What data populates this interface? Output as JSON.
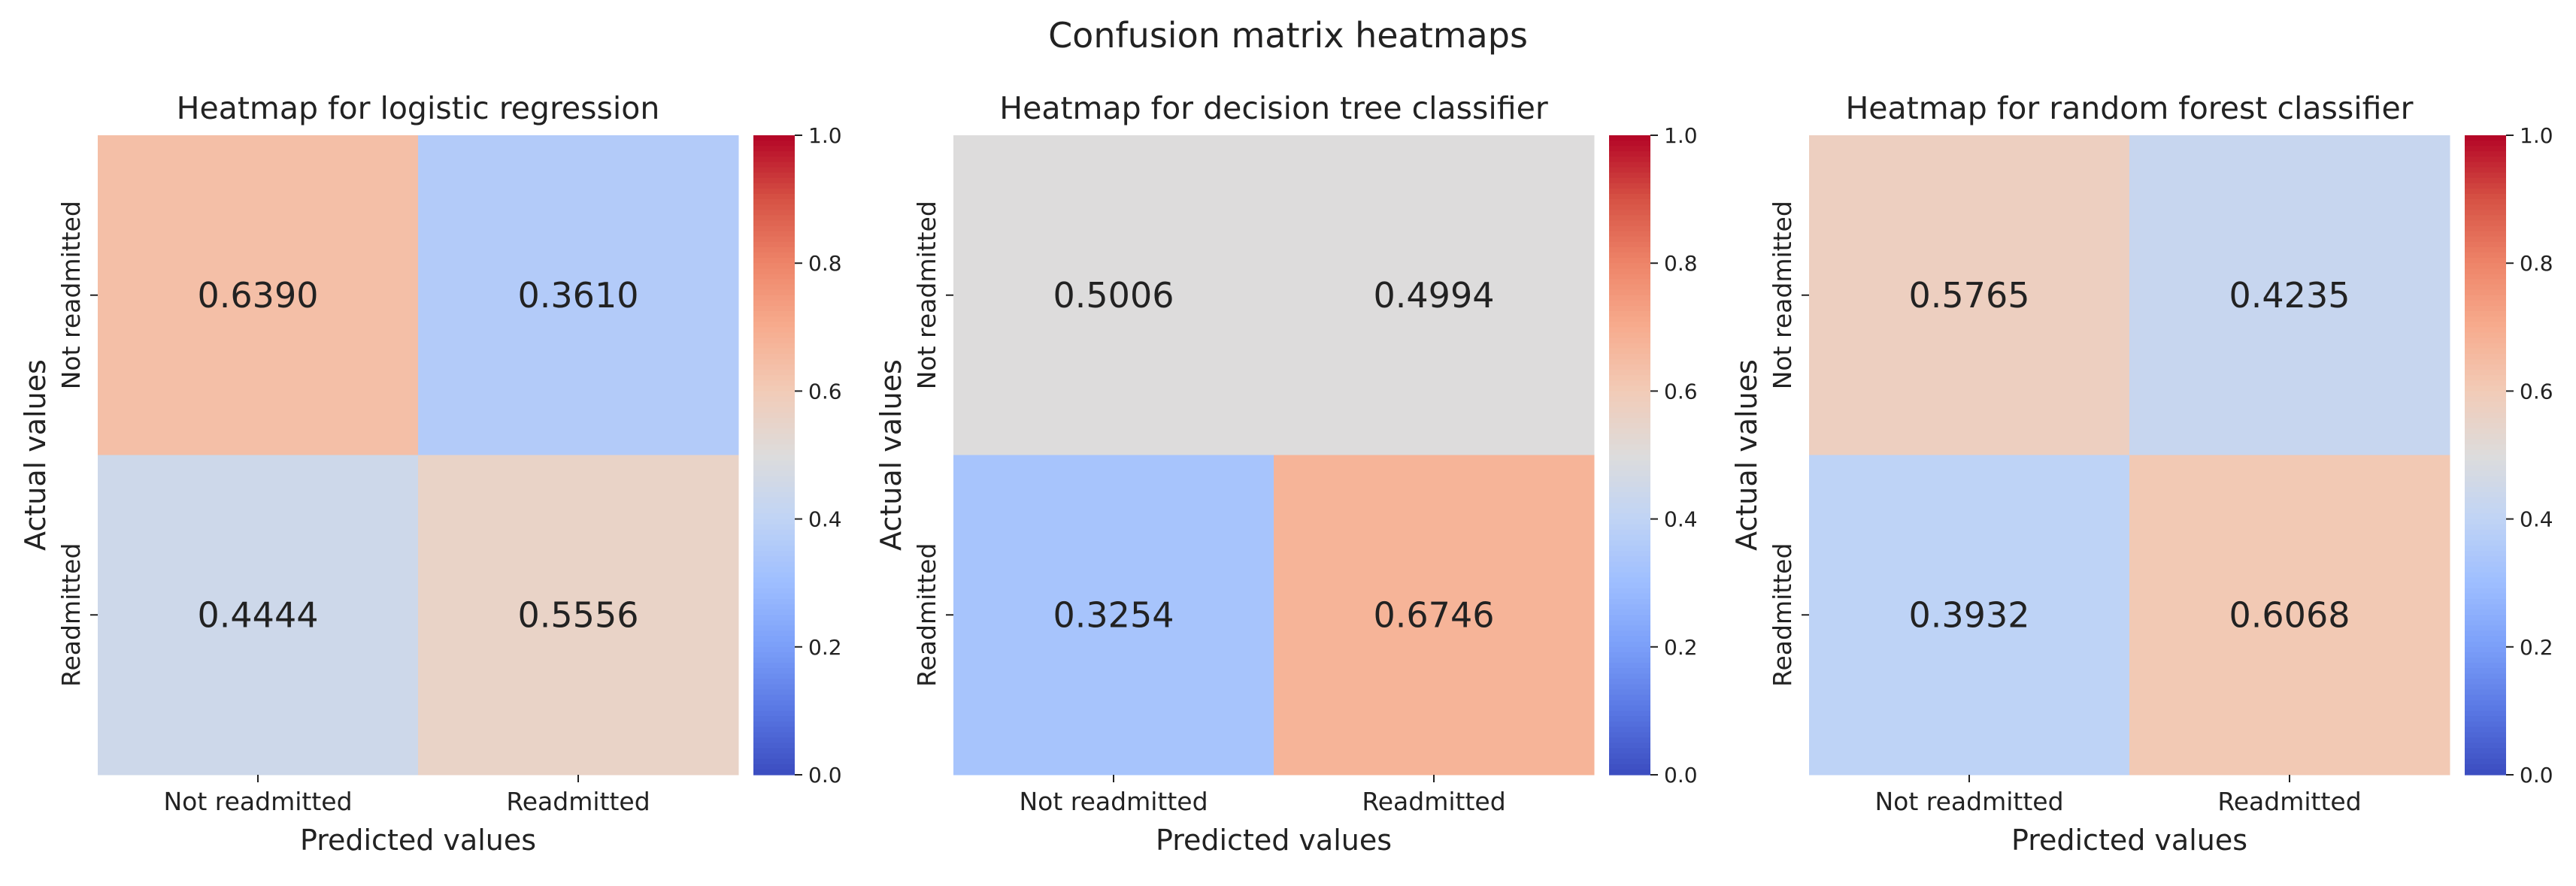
{
  "suptitle": "Confusion matrix heatmaps",
  "colormap": {
    "name": "coolwarm",
    "stops": [
      [
        0.0,
        "#3b4cc0"
      ],
      [
        0.1,
        "#5977e3"
      ],
      [
        0.2,
        "#7b9ff9"
      ],
      [
        0.3,
        "#9ebeff"
      ],
      [
        0.4,
        "#c0d4f5"
      ],
      [
        0.5,
        "#dddcdc"
      ],
      [
        0.6,
        "#f2cbb7"
      ],
      [
        0.7,
        "#f7ac8e"
      ],
      [
        0.8,
        "#ee8468"
      ],
      [
        0.9,
        "#d65244"
      ],
      [
        1.0,
        "#b40426"
      ]
    ]
  },
  "chart_data": [
    {
      "type": "heatmap",
      "title": "Heatmap for logistic regression",
      "xlabel": "Predicted values",
      "ylabel": "Actual values",
      "x_categories": [
        "Not readmitted",
        "Readmitted"
      ],
      "y_categories": [
        "Not readmitted",
        "Readmitted"
      ],
      "values": [
        [
          0.639,
          0.361
        ],
        [
          0.4444,
          0.5556
        ]
      ],
      "labels": [
        [
          "0.6390",
          "0.3610"
        ],
        [
          "0.4444",
          "0.5556"
        ]
      ],
      "vmin": 0.0,
      "vmax": 1.0,
      "colorbar_ticks": [
        "0.0",
        "0.2",
        "0.4",
        "0.6",
        "0.8",
        "1.0"
      ],
      "colormap": "coolwarm"
    },
    {
      "type": "heatmap",
      "title": "Heatmap for decision tree classifier",
      "xlabel": "Predicted values",
      "ylabel": "Actual values",
      "x_categories": [
        "Not readmitted",
        "Readmitted"
      ],
      "y_categories": [
        "Not readmitted",
        "Readmitted"
      ],
      "values": [
        [
          0.5006,
          0.4994
        ],
        [
          0.3254,
          0.6746
        ]
      ],
      "labels": [
        [
          "0.5006",
          "0.4994"
        ],
        [
          "0.3254",
          "0.6746"
        ]
      ],
      "vmin": 0.0,
      "vmax": 1.0,
      "colorbar_ticks": [
        "0.0",
        "0.2",
        "0.4",
        "0.6",
        "0.8",
        "1.0"
      ],
      "colormap": "coolwarm"
    },
    {
      "type": "heatmap",
      "title": "Heatmap for random forest classifier",
      "xlabel": "Predicted values",
      "ylabel": "Actual values",
      "x_categories": [
        "Not readmitted",
        "Readmitted"
      ],
      "y_categories": [
        "Not readmitted",
        "Readmitted"
      ],
      "values": [
        [
          0.5765,
          0.4235
        ],
        [
          0.3932,
          0.6068
        ]
      ],
      "labels": [
        [
          "0.5765",
          "0.4235"
        ],
        [
          "0.3932",
          "0.6068"
        ]
      ],
      "vmin": 0.0,
      "vmax": 1.0,
      "colorbar_ticks": [
        "0.0",
        "0.2",
        "0.4",
        "0.6",
        "0.8",
        "1.0"
      ],
      "colormap": "coolwarm"
    }
  ]
}
